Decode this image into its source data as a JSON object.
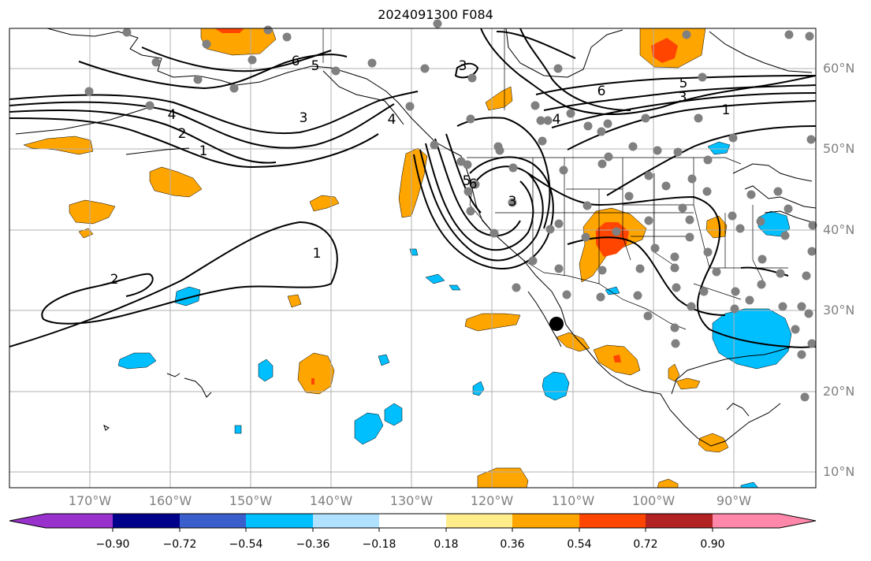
{
  "title": "2024091300 F084",
  "lat_labels": [
    "60°N",
    "50°N",
    "40°N",
    "30°N",
    "20°N",
    "10°N"
  ],
  "lon_labels": [
    "170°W",
    "160°W",
    "150°W",
    "140°W",
    "130°W",
    "120°W",
    "110°W",
    "100°W",
    "90°W"
  ],
  "contour_labels": [
    "6",
    "5",
    "4",
    "3",
    "2",
    "1",
    "3",
    "6",
    "5",
    "4",
    "3",
    "1",
    "1",
    "2",
    "6",
    "5",
    "4",
    "3"
  ],
  "colorbar": {
    "tick_labels": [
      "−0.90",
      "−0.72",
      "−0.54",
      "−0.36",
      "−0.18",
      "0.18",
      "0.36",
      "0.54",
      "0.72",
      "0.90"
    ],
    "colors": [
      "#9932cc",
      "#00008b",
      "#3a5fcd",
      "#00bfff",
      "#b0e2ff",
      "#ffffff",
      "#ffec8b",
      "#ffa500",
      "#ff4500",
      "#b22222",
      "#ff88aa"
    ]
  },
  "marker_note": ""
}
